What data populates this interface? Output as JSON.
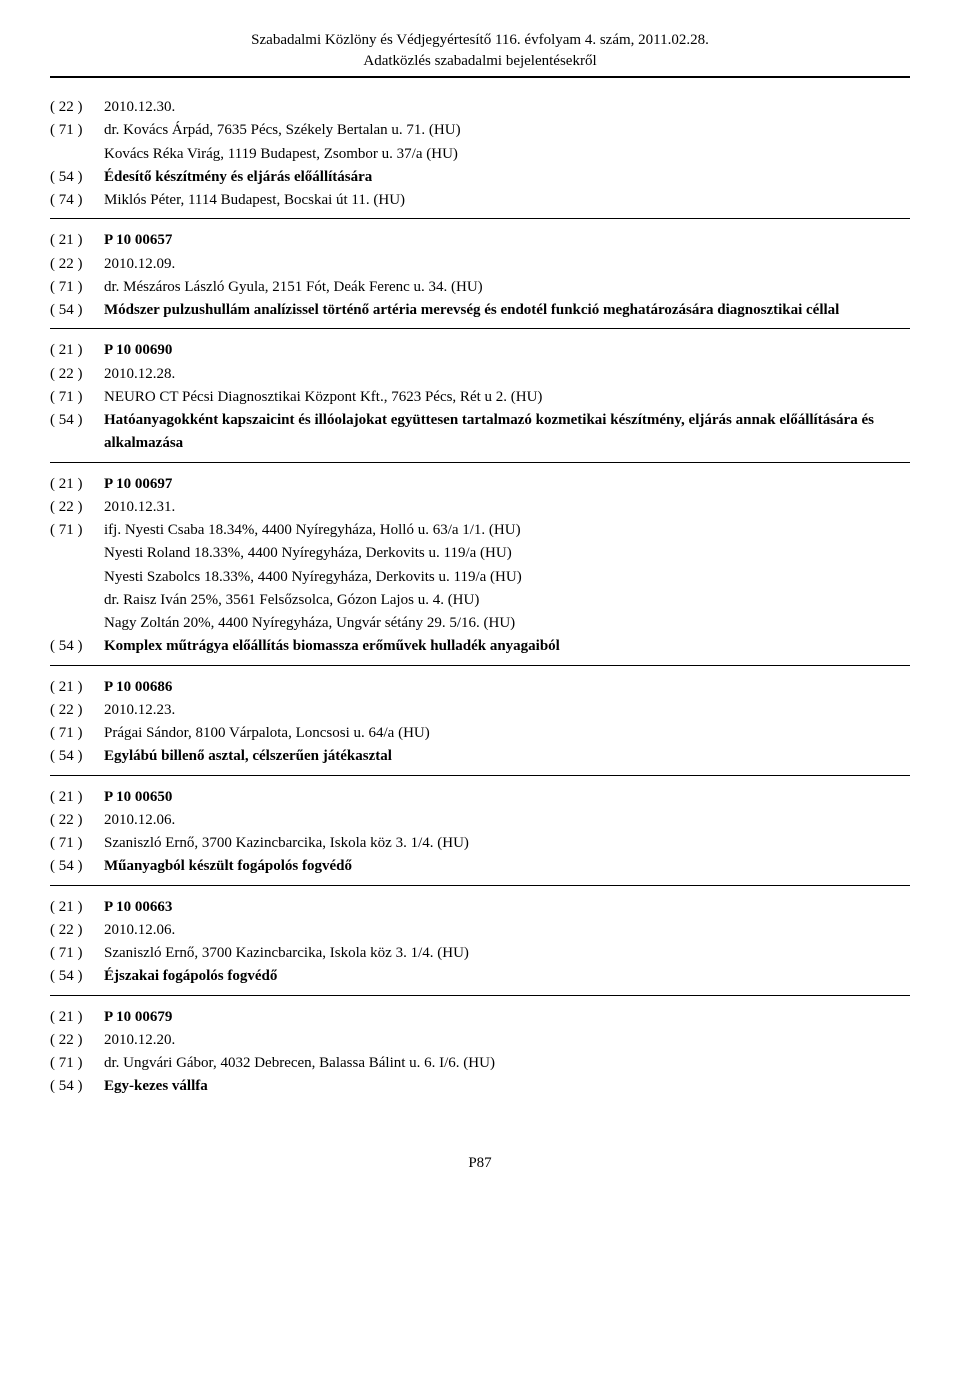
{
  "header": {
    "line1": "Szabadalmi Közlöny és Védjegyértesítő 116. évfolyam 4. szám, 2011.02.28.",
    "line2": "Adatközlés szabadalmi bejelentésekről"
  },
  "entries": [
    {
      "separator": true,
      "rows": [
        {
          "code": "( 22 )",
          "lines": [
            {
              "text": "2010.12.30."
            }
          ]
        },
        {
          "code": "( 71 )",
          "lines": [
            {
              "text": "dr. Kovács Árpád, 7635 Pécs, Székely Bertalan u. 71. (HU)"
            },
            {
              "text": "Kovács Réka Virág, 1119 Budapest, Zsombor u. 37/a (HU)"
            }
          ]
        },
        {
          "code": "( 54 )",
          "lines": [
            {
              "text": "Édesítő készítmény és eljárás előállítására",
              "bold": true
            }
          ]
        },
        {
          "code": "( 74 )",
          "lines": [
            {
              "text": "Miklós Péter, 1114 Budapest, Bocskai út 11. (HU)"
            }
          ]
        }
      ]
    },
    {
      "separator": true,
      "rows": [
        {
          "code": "( 21 )",
          "lines": [
            {
              "text": "P 10 00657",
              "bold": true
            }
          ]
        },
        {
          "code": "( 22 )",
          "lines": [
            {
              "text": "2010.12.09."
            }
          ]
        },
        {
          "code": "( 71 )",
          "lines": [
            {
              "text": "dr. Mészáros László Gyula, 2151 Fót, Deák Ferenc u. 34. (HU)"
            }
          ]
        },
        {
          "code": "( 54 )",
          "lines": [
            {
              "text": "Módszer pulzushullám analízissel történő artéria merevség és endotél funkció meghatározására diagnosztikai céllal",
              "bold": true
            }
          ]
        }
      ]
    },
    {
      "separator": true,
      "rows": [
        {
          "code": "( 21 )",
          "lines": [
            {
              "text": "P 10 00690",
              "bold": true
            }
          ]
        },
        {
          "code": "( 22 )",
          "lines": [
            {
              "text": "2010.12.28."
            }
          ]
        },
        {
          "code": "( 71 )",
          "lines": [
            {
              "text": "NEURO CT Pécsi Diagnosztikai Központ Kft., 7623 Pécs, Rét u 2. (HU)"
            }
          ]
        },
        {
          "code": "( 54 )",
          "lines": [
            {
              "text": "Hatóanyagokként kapszaicint és illóolajokat együttesen tartalmazó kozmetikai készítmény, eljárás annak előállítására és alkalmazása",
              "bold": true
            }
          ]
        }
      ]
    },
    {
      "separator": true,
      "rows": [
        {
          "code": "( 21 )",
          "lines": [
            {
              "text": "P 10 00697",
              "bold": true
            }
          ]
        },
        {
          "code": "( 22 )",
          "lines": [
            {
              "text": "2010.12.31."
            }
          ]
        },
        {
          "code": "( 71 )",
          "lines": [
            {
              "text": "ifj. Nyesti Csaba 18.34%, 4400 Nyíregyháza, Holló u. 63/a 1/1. (HU)"
            },
            {
              "text": "Nyesti Roland 18.33%, 4400 Nyíregyháza, Derkovits u. 119/a (HU)"
            },
            {
              "text": "Nyesti Szabolcs 18.33%, 4400 Nyíregyháza, Derkovits u. 119/a (HU)"
            },
            {
              "text": "dr. Raisz Iván 25%, 3561 Felsőzsolca, Gózon Lajos u. 4. (HU)"
            },
            {
              "text": "Nagy Zoltán 20%, 4400 Nyíregyháza, Ungvár sétány 29. 5/16. (HU)"
            }
          ]
        },
        {
          "code": "( 54 )",
          "lines": [
            {
              "text": "Komplex műtrágya előállítás biomassza erőművek hulladék anyagaiból",
              "bold": true
            }
          ]
        }
      ]
    },
    {
      "separator": true,
      "rows": [
        {
          "code": "( 21 )",
          "lines": [
            {
              "text": "P 10 00686",
              "bold": true
            }
          ]
        },
        {
          "code": "( 22 )",
          "lines": [
            {
              "text": "2010.12.23."
            }
          ]
        },
        {
          "code": "( 71 )",
          "lines": [
            {
              "text": "Prágai Sándor, 8100 Várpalota, Loncsosi u. 64/a (HU)"
            }
          ]
        },
        {
          "code": "( 54 )",
          "lines": [
            {
              "text": "Egylábú billenő asztal, célszerűen játékasztal",
              "bold": true
            }
          ]
        }
      ]
    },
    {
      "separator": true,
      "rows": [
        {
          "code": "( 21 )",
          "lines": [
            {
              "text": "P 10 00650",
              "bold": true
            }
          ]
        },
        {
          "code": "( 22 )",
          "lines": [
            {
              "text": "2010.12.06."
            }
          ]
        },
        {
          "code": "( 71 )",
          "lines": [
            {
              "text": "Szaniszló Ernő, 3700 Kazincbarcika, Iskola köz 3. 1/4. (HU)"
            }
          ]
        },
        {
          "code": "( 54 )",
          "lines": [
            {
              "text": "Műanyagból készült fogápolós fogvédő",
              "bold": true
            }
          ]
        }
      ]
    },
    {
      "separator": true,
      "rows": [
        {
          "code": "( 21 )",
          "lines": [
            {
              "text": "P 10 00663",
              "bold": true
            }
          ]
        },
        {
          "code": "( 22 )",
          "lines": [
            {
              "text": "2010.12.06."
            }
          ]
        },
        {
          "code": "( 71 )",
          "lines": [
            {
              "text": "Szaniszló Ernő, 3700 Kazincbarcika, Iskola köz 3. 1/4. (HU)"
            }
          ]
        },
        {
          "code": "( 54 )",
          "lines": [
            {
              "text": "Éjszakai fogápolós fogvédő",
              "bold": true
            }
          ]
        }
      ]
    },
    {
      "separator": false,
      "rows": [
        {
          "code": "( 21 )",
          "lines": [
            {
              "text": "P 10 00679",
              "bold": true
            }
          ]
        },
        {
          "code": "( 22 )",
          "lines": [
            {
              "text": "2010.12.20."
            }
          ]
        },
        {
          "code": "( 71 )",
          "lines": [
            {
              "text": "dr. Ungvári Gábor, 4032 Debrecen, Balassa Bálint u. 6. I/6. (HU)"
            }
          ]
        },
        {
          "code": "( 54 )",
          "lines": [
            {
              "text": "Egy-kezes vállfa",
              "bold": true
            }
          ]
        }
      ]
    }
  ],
  "footer": "P87"
}
